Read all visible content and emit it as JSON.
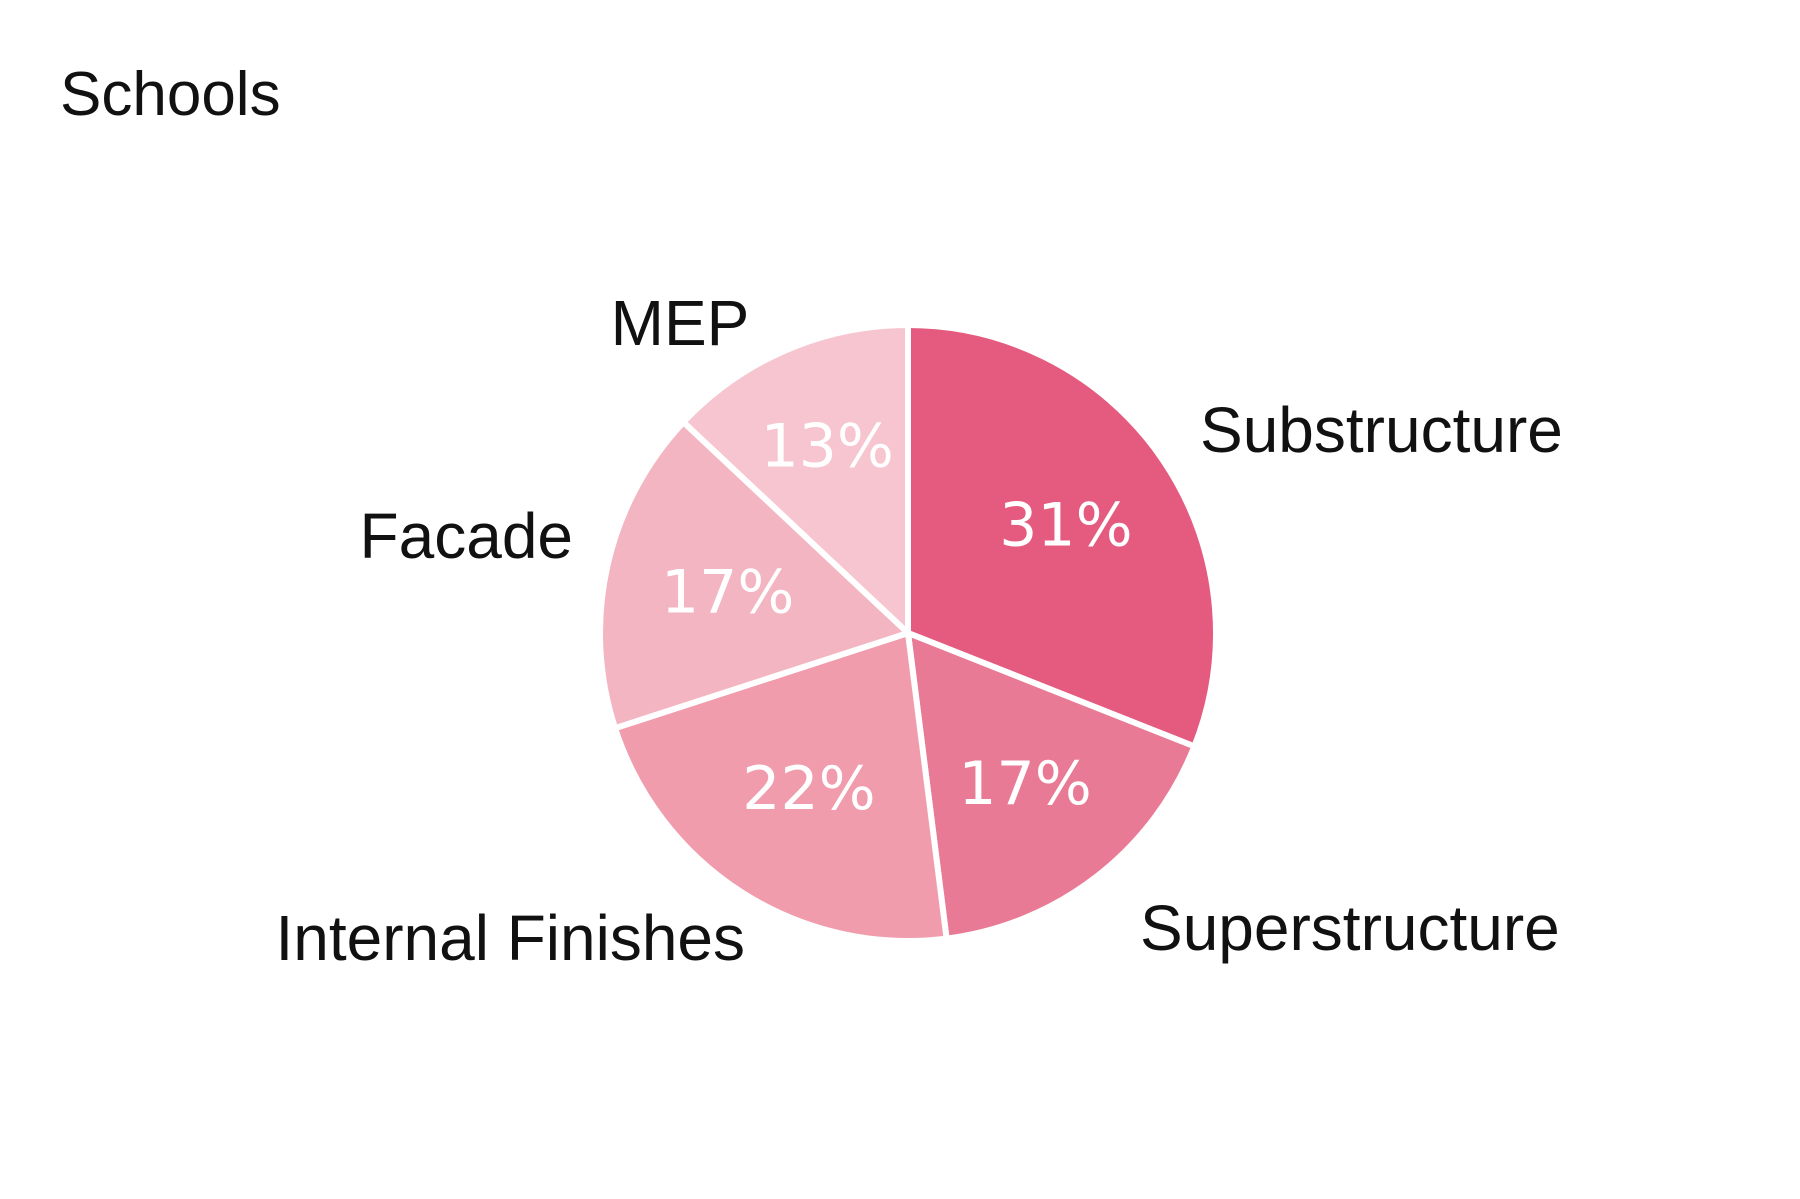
{
  "chart_data": {
    "type": "pie",
    "title": "Schools",
    "slices": [
      {
        "label": "Substructure",
        "value": 31,
        "value_label": "31%",
        "color": "#e55b7f"
      },
      {
        "label": "Superstructure",
        "value": 17,
        "value_label": "17%",
        "color": "#e97a95"
      },
      {
        "label": "Internal Finishes",
        "value": 22,
        "value_label": "22%",
        "color": "#f09cad"
      },
      {
        "label": "Facade",
        "value": 17,
        "value_label": "17%",
        "color": "#f3b5c1"
      },
      {
        "label": "MEP",
        "value": 13,
        "value_label": "13%",
        "color": "#f6c5cf"
      }
    ],
    "start_angle": "12 o'clock",
    "direction": "clockwise",
    "legend": "none",
    "separator_color": "#ffffff"
  }
}
